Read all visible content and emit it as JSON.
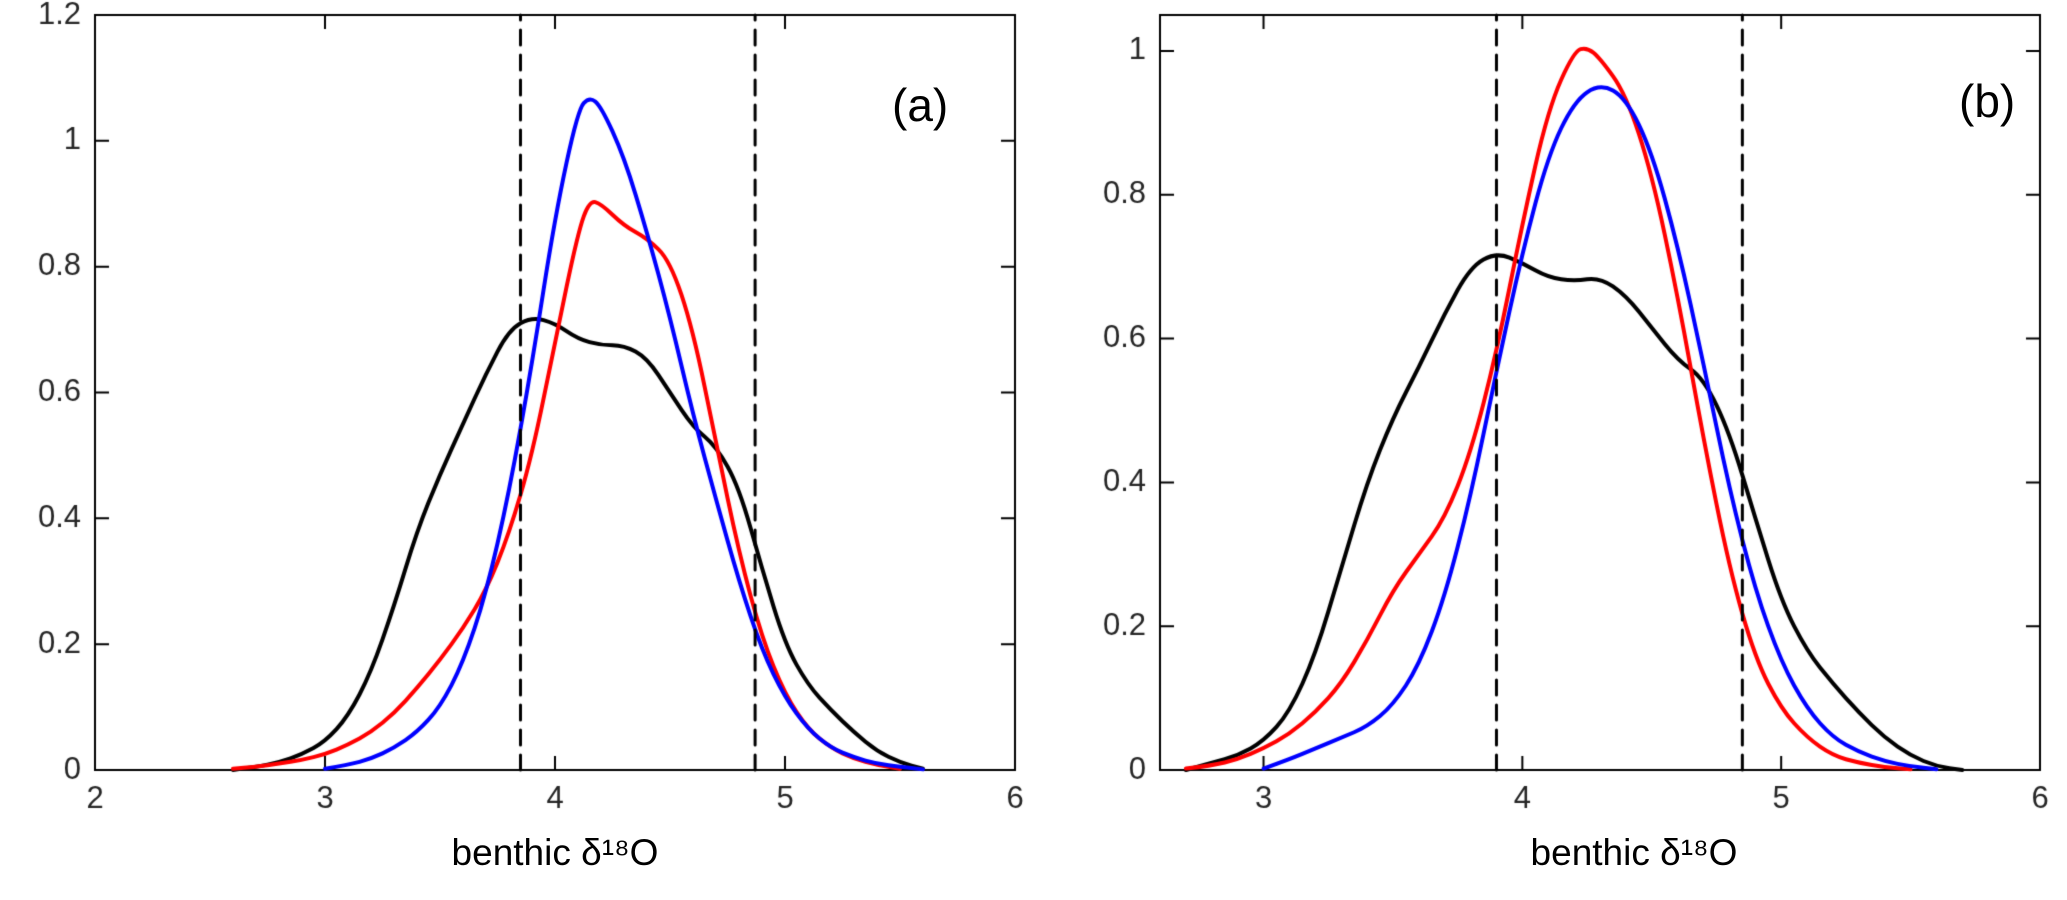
{
  "figure": {
    "background": "#ffffff",
    "axis_color": "#000000",
    "tick_label_color": "#262626",
    "dashed_line_color": "#000000"
  },
  "chart_data": [
    {
      "type": "line",
      "panel_label": "(a)",
      "xlabel": "benthic δ¹⁸O",
      "ylabel": "",
      "xlim": [
        2,
        6
      ],
      "ylim": [
        0,
        1.2
      ],
      "xticks": [
        2,
        3,
        4,
        5,
        6
      ],
      "xtick_labels": [
        "2",
        "3",
        "4",
        "5",
        "6"
      ],
      "yticks": [
        0,
        0.2,
        0.4,
        0.6,
        0.8,
        1,
        1.2
      ],
      "ytick_labels": [
        "0",
        "0.2",
        "0.4",
        "0.6",
        "0.8",
        "1",
        "1.2"
      ],
      "grid": false,
      "legend": "none",
      "dashed_lines_x": [
        3.85,
        4.87
      ],
      "series": [
        {
          "name": "black-curve",
          "color": "#000000",
          "points": [
            [
              2.6,
              0
            ],
            [
              2.7,
              0.005
            ],
            [
              2.8,
              0.012
            ],
            [
              2.9,
              0.025
            ],
            [
              3.0,
              0.045
            ],
            [
              3.1,
              0.085
            ],
            [
              3.2,
              0.155
            ],
            [
              3.3,
              0.26
            ],
            [
              3.4,
              0.38
            ],
            [
              3.5,
              0.47
            ],
            [
              3.6,
              0.55
            ],
            [
              3.7,
              0.63
            ],
            [
              3.8,
              0.7
            ],
            [
              3.9,
              0.72
            ],
            [
              4.0,
              0.71
            ],
            [
              4.1,
              0.685
            ],
            [
              4.2,
              0.675
            ],
            [
              4.3,
              0.675
            ],
            [
              4.4,
              0.655
            ],
            [
              4.5,
              0.6
            ],
            [
              4.6,
              0.545
            ],
            [
              4.7,
              0.515
            ],
            [
              4.8,
              0.45
            ],
            [
              4.9,
              0.32
            ],
            [
              5.0,
              0.2
            ],
            [
              5.1,
              0.135
            ],
            [
              5.2,
              0.095
            ],
            [
              5.3,
              0.06
            ],
            [
              5.4,
              0.03
            ],
            [
              5.5,
              0.012
            ],
            [
              5.6,
              0.002
            ]
          ]
        },
        {
          "name": "red-curve",
          "color": "#ff0000",
          "points": [
            [
              2.6,
              0.002
            ],
            [
              2.7,
              0.005
            ],
            [
              2.8,
              0.01
            ],
            [
              2.9,
              0.016
            ],
            [
              3.0,
              0.025
            ],
            [
              3.1,
              0.04
            ],
            [
              3.2,
              0.06
            ],
            [
              3.3,
              0.09
            ],
            [
              3.4,
              0.13
            ],
            [
              3.5,
              0.175
            ],
            [
              3.6,
              0.225
            ],
            [
              3.7,
              0.285
            ],
            [
              3.8,
              0.375
            ],
            [
              3.9,
              0.5
            ],
            [
              4.0,
              0.68
            ],
            [
              4.1,
              0.855
            ],
            [
              4.15,
              0.905
            ],
            [
              4.2,
              0.9
            ],
            [
              4.3,
              0.865
            ],
            [
              4.4,
              0.845
            ],
            [
              4.5,
              0.81
            ],
            [
              4.6,
              0.7
            ],
            [
              4.7,
              0.52
            ],
            [
              4.8,
              0.345
            ],
            [
              4.9,
              0.21
            ],
            [
              5.0,
              0.12
            ],
            [
              5.1,
              0.065
            ],
            [
              5.2,
              0.035
            ],
            [
              5.3,
              0.018
            ],
            [
              5.4,
              0.008
            ],
            [
              5.5,
              0.002
            ]
          ]
        },
        {
          "name": "blue-curve",
          "color": "#0000ff",
          "points": [
            [
              3.0,
              0.002
            ],
            [
              3.1,
              0.008
            ],
            [
              3.2,
              0.018
            ],
            [
              3.3,
              0.035
            ],
            [
              3.4,
              0.06
            ],
            [
              3.5,
              0.1
            ],
            [
              3.6,
              0.17
            ],
            [
              3.7,
              0.28
            ],
            [
              3.8,
              0.44
            ],
            [
              3.9,
              0.645
            ],
            [
              4.0,
              0.88
            ],
            [
              4.1,
              1.05
            ],
            [
              4.15,
              1.07
            ],
            [
              4.2,
              1.055
            ],
            [
              4.3,
              0.975
            ],
            [
              4.4,
              0.855
            ],
            [
              4.5,
              0.72
            ],
            [
              4.6,
              0.565
            ],
            [
              4.7,
              0.43
            ],
            [
              4.8,
              0.3
            ],
            [
              4.9,
              0.19
            ],
            [
              5.0,
              0.115
            ],
            [
              5.1,
              0.065
            ],
            [
              5.2,
              0.035
            ],
            [
              5.3,
              0.02
            ],
            [
              5.4,
              0.01
            ],
            [
              5.5,
              0.005
            ],
            [
              5.6,
              0.001
            ]
          ]
        }
      ]
    },
    {
      "type": "line",
      "panel_label": "(b)",
      "xlabel": "benthic δ¹⁸O",
      "ylabel": "",
      "xlim": [
        2.6,
        6
      ],
      "ylim": [
        0,
        1.05
      ],
      "xticks": [
        3,
        4,
        5,
        6
      ],
      "xtick_labels": [
        "3",
        "4",
        "5",
        "6"
      ],
      "yticks": [
        0,
        0.2,
        0.4,
        0.6,
        0.8,
        1
      ],
      "ytick_labels": [
        "0",
        "0.2",
        "0.4",
        "0.6",
        "0.8",
        "1"
      ],
      "grid": false,
      "legend": "none",
      "dashed_lines_x": [
        3.9,
        4.85
      ],
      "series": [
        {
          "name": "black-curve",
          "color": "#000000",
          "points": [
            [
              2.7,
              0
            ],
            [
              2.8,
              0.01
            ],
            [
              2.9,
              0.02
            ],
            [
              3.0,
              0.04
            ],
            [
              3.1,
              0.08
            ],
            [
              3.2,
              0.16
            ],
            [
              3.3,
              0.28
            ],
            [
              3.4,
              0.4
            ],
            [
              3.5,
              0.49
            ],
            [
              3.6,
              0.56
            ],
            [
              3.7,
              0.635
            ],
            [
              3.8,
              0.7
            ],
            [
              3.9,
              0.72
            ],
            [
              4.0,
              0.705
            ],
            [
              4.1,
              0.685
            ],
            [
              4.2,
              0.68
            ],
            [
              4.3,
              0.685
            ],
            [
              4.4,
              0.66
            ],
            [
              4.5,
              0.615
            ],
            [
              4.6,
              0.57
            ],
            [
              4.7,
              0.545
            ],
            [
              4.8,
              0.47
            ],
            [
              4.9,
              0.35
            ],
            [
              5.0,
              0.235
            ],
            [
              5.1,
              0.165
            ],
            [
              5.2,
              0.12
            ],
            [
              5.3,
              0.08
            ],
            [
              5.4,
              0.045
            ],
            [
              5.5,
              0.02
            ],
            [
              5.6,
              0.005
            ],
            [
              5.7,
              0
            ]
          ]
        },
        {
          "name": "red-curve",
          "color": "#ff0000",
          "points": [
            [
              2.7,
              0.002
            ],
            [
              2.8,
              0.006
            ],
            [
              2.9,
              0.015
            ],
            [
              3.0,
              0.03
            ],
            [
              3.1,
              0.05
            ],
            [
              3.2,
              0.08
            ],
            [
              3.3,
              0.12
            ],
            [
              3.4,
              0.18
            ],
            [
              3.5,
              0.25
            ],
            [
              3.6,
              0.3
            ],
            [
              3.7,
              0.35
            ],
            [
              3.8,
              0.44
            ],
            [
              3.9,
              0.58
            ],
            [
              4.0,
              0.76
            ],
            [
              4.1,
              0.92
            ],
            [
              4.2,
              1.0
            ],
            [
              4.25,
              1.005
            ],
            [
              4.3,
              0.99
            ],
            [
              4.4,
              0.94
            ],
            [
              4.5,
              0.83
            ],
            [
              4.6,
              0.66
            ],
            [
              4.7,
              0.46
            ],
            [
              4.8,
              0.28
            ],
            [
              4.9,
              0.155
            ],
            [
              5.0,
              0.085
            ],
            [
              5.1,
              0.045
            ],
            [
              5.2,
              0.02
            ],
            [
              5.3,
              0.01
            ],
            [
              5.4,
              0.004
            ],
            [
              5.5,
              0.001
            ]
          ]
        },
        {
          "name": "blue-curve",
          "color": "#0000ff",
          "points": [
            [
              3.0,
              0.002
            ],
            [
              3.1,
              0.015
            ],
            [
              3.2,
              0.03
            ],
            [
              3.3,
              0.045
            ],
            [
              3.4,
              0.06
            ],
            [
              3.5,
              0.09
            ],
            [
              3.6,
              0.145
            ],
            [
              3.7,
              0.24
            ],
            [
              3.8,
              0.38
            ],
            [
              3.9,
              0.555
            ],
            [
              4.0,
              0.72
            ],
            [
              4.1,
              0.855
            ],
            [
              4.2,
              0.93
            ],
            [
              4.3,
              0.955
            ],
            [
              4.4,
              0.935
            ],
            [
              4.5,
              0.86
            ],
            [
              4.6,
              0.73
            ],
            [
              4.7,
              0.565
            ],
            [
              4.8,
              0.39
            ],
            [
              4.9,
              0.25
            ],
            [
              5.0,
              0.15
            ],
            [
              5.1,
              0.085
            ],
            [
              5.2,
              0.045
            ],
            [
              5.3,
              0.025
            ],
            [
              5.4,
              0.012
            ],
            [
              5.5,
              0.005
            ],
            [
              5.6,
              0.001
            ]
          ]
        }
      ]
    }
  ]
}
